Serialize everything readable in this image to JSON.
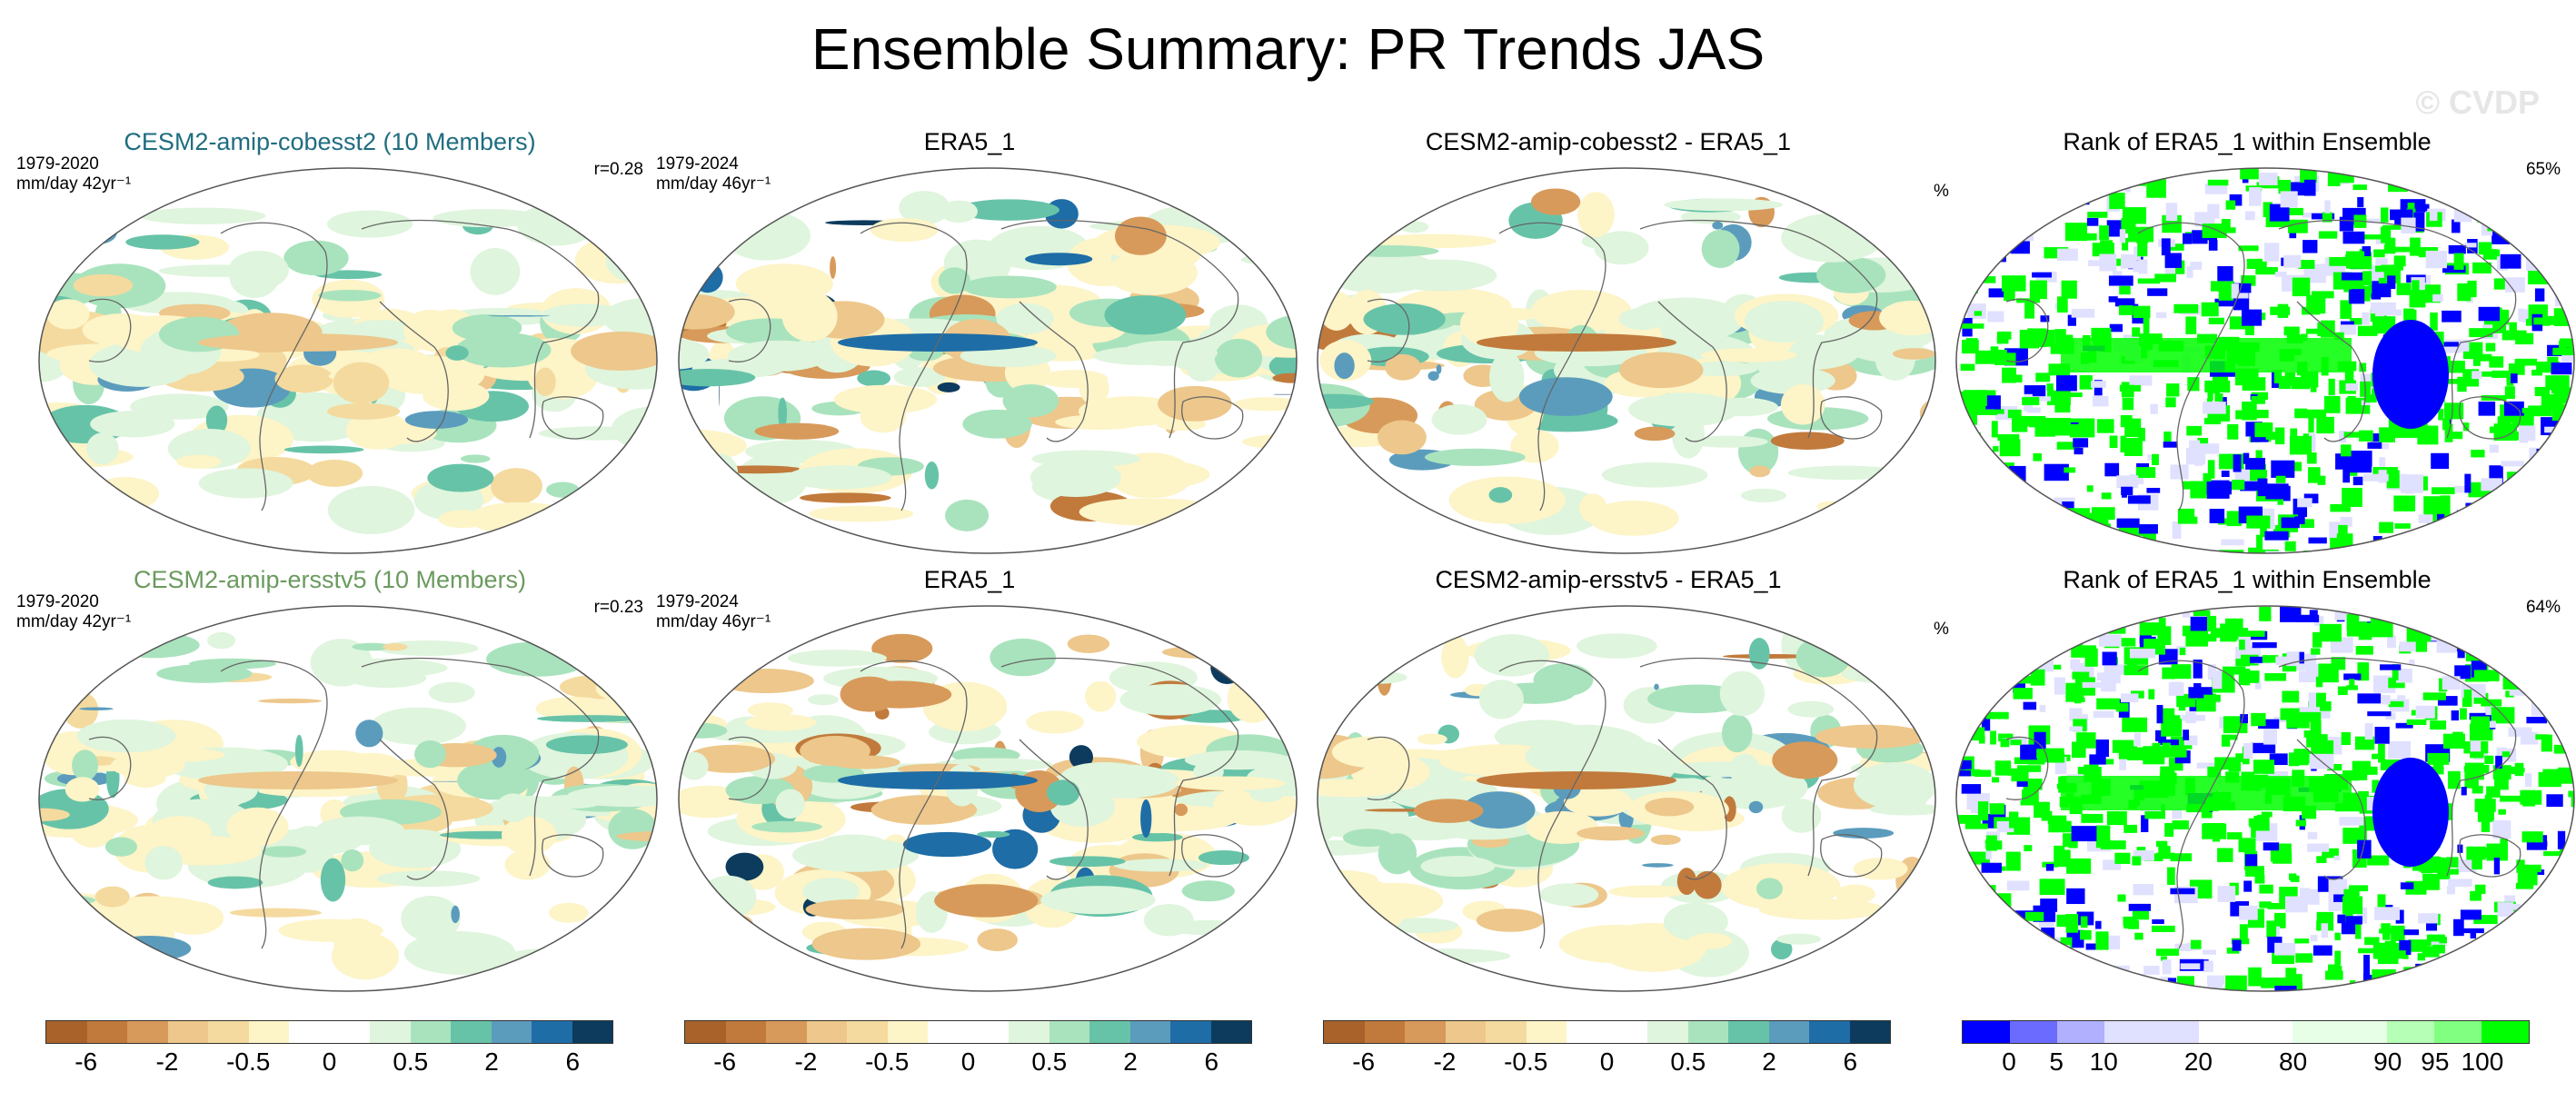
{
  "title": "Ensemble Summary: PR Trends JAS",
  "watermark": "© CVDP",
  "colors": {
    "title_model1": "#1f6d80",
    "title_model2": "#6b9a5f",
    "land": "#ffffff",
    "coast": "#666666"
  },
  "rows": [
    {
      "model": {
        "title": "CESM2-amip-cobesst2 (10 Members)",
        "years": "1979-2020",
        "units": "mm/day 42yr⁻¹",
        "corr": "r=0.28"
      },
      "obs": {
        "title": "ERA5_1",
        "years": "1979-2024",
        "units": "mm/day 46yr⁻¹"
      },
      "diff": {
        "title": "CESM2-amip-cobesst2 - ERA5_1"
      },
      "rank": {
        "title": "Rank of ERA5_1 within Ensemble",
        "unit": "%",
        "pct": "65%"
      }
    },
    {
      "model": {
        "title": "CESM2-amip-ersstv5 (10 Members)",
        "years": "1979-2020",
        "units": "mm/day 42yr⁻¹",
        "corr": "r=0.23"
      },
      "obs": {
        "title": "ERA5_1",
        "years": "1979-2024",
        "units": "mm/day 46yr⁻¹"
      },
      "diff": {
        "title": "CESM2-amip-ersstv5 - ERA5_1"
      },
      "rank": {
        "title": "Rank of ERA5_1 within Ensemble",
        "unit": "%",
        "pct": "64%"
      }
    }
  ],
  "colorbar_trend": {
    "colors": [
      "#a8622a",
      "#c17a3c",
      "#d79a5a",
      "#edc78b",
      "#f4da9e",
      "#fdf4c8",
      "#ffffff",
      "#ffffff",
      "#dff5dd",
      "#a9e3bd",
      "#67c3a8",
      "#5b9cbd",
      "#1e6da6",
      "#0c3b5e"
    ],
    "labels": [
      "-6",
      "-2",
      "-0.5",
      "0",
      "0.5",
      "2",
      "6"
    ]
  },
  "colorbar_rank": {
    "colors": [
      "#0000ff",
      "#6b6bff",
      "#b0b0ff",
      "#e0e0ff",
      "#e0e0ff",
      "#ffffff",
      "#ffffff",
      "#e6ffe6",
      "#e6ffe6",
      "#b6ffb6",
      "#80ff80",
      "#00ff00"
    ],
    "labels": [
      "0",
      "5",
      "10",
      "20",
      "80",
      "90",
      "95",
      "100"
    ]
  }
}
